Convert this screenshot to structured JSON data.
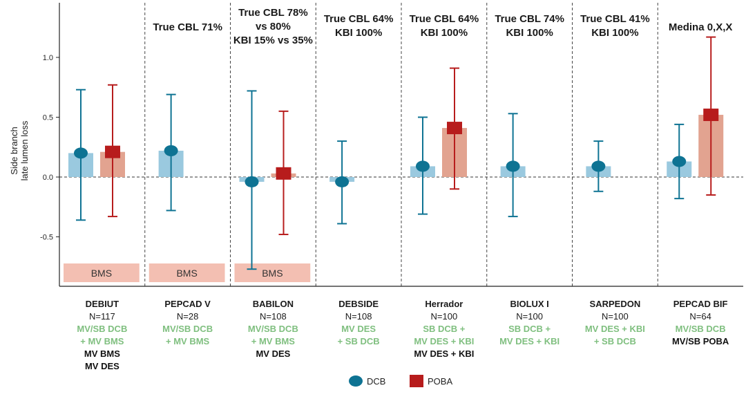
{
  "chart_data": {
    "type": "bar",
    "ylabel": "Side branch late lumen loss",
    "ylim": [
      -0.9,
      1.45
    ],
    "yticks": [
      -0.5,
      0.0,
      0.5,
      1.0
    ],
    "ytick_labels": [
      "-0.5",
      "0.0",
      "0.5",
      "1.0"
    ],
    "legend": [
      {
        "name": "DCB",
        "color": "#0e7393",
        "marker": "circle"
      },
      {
        "name": "POBA",
        "color": "#b71c1c",
        "marker": "square"
      }
    ],
    "bar_colors": {
      "DCB": "#9ac9df",
      "POBA": "#e2a390"
    },
    "bms_color": "#f3bfb2",
    "label_colors": {
      "green": "#7fbf7f",
      "black": "#111111"
    },
    "studies": [
      {
        "header": [],
        "name": "DEBIUT",
        "n": "N=117",
        "labels": [
          {
            "text": "MV/SB DCB",
            "color": "green"
          },
          {
            "text": "+ MV BMS",
            "color": "green"
          },
          {
            "text": "MV BMS",
            "color": "black"
          },
          {
            "text": "MV DES",
            "color": "black"
          }
        ],
        "bms": "BMS",
        "DCB": {
          "value": 0.2,
          "low": -0.36,
          "high": 0.73
        },
        "POBA": {
          "value": 0.21,
          "low": -0.33,
          "high": 0.77
        }
      },
      {
        "header": [
          "True CBL 71%"
        ],
        "name": "PEPCAD V",
        "n": "N=28",
        "labels": [
          {
            "text": "MV/SB DCB",
            "color": "green"
          },
          {
            "text": "+ MV BMS",
            "color": "green"
          }
        ],
        "bms": "BMS",
        "DCB": {
          "value": 0.22,
          "low": -0.28,
          "high": 0.69
        }
      },
      {
        "header": [
          "True CBL 78%",
          "vs 80%",
          "KBI 15% vs 35%"
        ],
        "name": "BABILON",
        "n": "N=108",
        "labels": [
          {
            "text": "MV/SB DCB",
            "color": "green"
          },
          {
            "text": "+ MV BMS",
            "color": "green"
          },
          {
            "text": "MV DES",
            "color": "black"
          }
        ],
        "bms": "BMS",
        "DCB": {
          "value": -0.04,
          "low": -0.77,
          "high": 0.72
        },
        "POBA": {
          "value": 0.03,
          "low": -0.48,
          "high": 0.55
        }
      },
      {
        "header": [
          "True CBL 64%",
          "KBI 100%"
        ],
        "name": "DEBSIDE",
        "n": "N=108",
        "labels": [
          {
            "text": "MV DES",
            "color": "green"
          },
          {
            "text": "+ SB DCB",
            "color": "green"
          }
        ],
        "DCB": {
          "value": -0.04,
          "low": -0.39,
          "high": 0.3
        }
      },
      {
        "header": [
          "True CBL 64%",
          "KBI 100%"
        ],
        "name": "Herrador",
        "n": "N=100",
        "labels": [
          {
            "text": "SB DCB +",
            "color": "green"
          },
          {
            "text": "MV DES + KBI",
            "color": "green"
          },
          {
            "text": "MV DES + KBI",
            "color": "black"
          }
        ],
        "DCB": {
          "value": 0.09,
          "low": -0.31,
          "high": 0.5
        },
        "POBA": {
          "value": 0.41,
          "low": -0.1,
          "high": 0.91
        }
      },
      {
        "header": [
          "True CBL 74%",
          "KBI 100%"
        ],
        "name": "BIOLUX I",
        "n": "N=100",
        "labels": [
          {
            "text": "SB DCB +",
            "color": "green"
          },
          {
            "text": "MV DES + KBI",
            "color": "green"
          }
        ],
        "DCB": {
          "value": 0.09,
          "low": -0.33,
          "high": 0.53
        }
      },
      {
        "header": [
          "True CBL 41%",
          "KBI 100%"
        ],
        "name": "SARPEDON",
        "n": "N=100",
        "labels": [
          {
            "text": "MV DES + KBI",
            "color": "green"
          },
          {
            "text": "+ SB DCB",
            "color": "green"
          }
        ],
        "DCB": {
          "value": 0.09,
          "low": -0.12,
          "high": 0.3
        }
      },
      {
        "header": [
          "Medina 0,X,X"
        ],
        "name": "PEPCAD BIF",
        "n": "N=64",
        "labels": [
          {
            "text": "MV/SB DCB",
            "color": "green"
          },
          {
            "text": "MV/SB POBA",
            "color": "black"
          }
        ],
        "DCB": {
          "value": 0.13,
          "low": -0.18,
          "high": 0.44
        },
        "POBA": {
          "value": 0.52,
          "low": -0.15,
          "high": 1.17
        }
      }
    ]
  }
}
